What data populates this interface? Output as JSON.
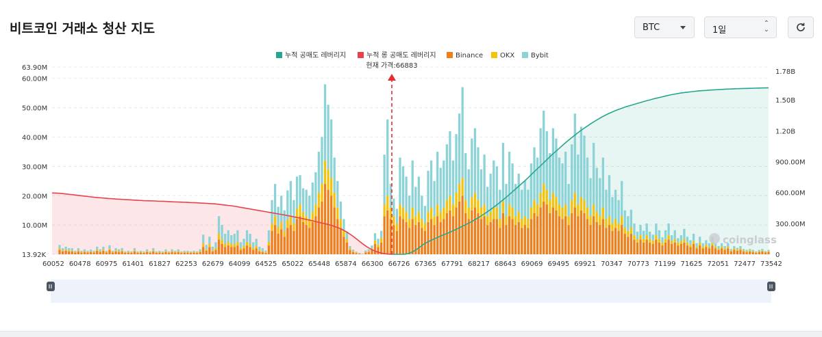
{
  "header": {
    "title": "비트코인 거래소 청산 지도",
    "symbol": "BTC",
    "period": "1일",
    "symbol_icon": "chevron-down-icon",
    "period_icon": "up-down-icon",
    "refresh_icon": "refresh-icon"
  },
  "colors": {
    "short_cum": "#26a68e",
    "long_cum": "#e8414b",
    "binance": "#ef7f1a",
    "okx": "#f5c20b",
    "bybit": "#8bd3d6",
    "price_marker": "#e62e2e"
  },
  "chart_data": {
    "type": "bar",
    "legend": [
      "누적 공매도 레버리지",
      "누적 롱 공매도 레버리지",
      "Binance",
      "OKX",
      "Bybit"
    ],
    "legend_position": "top-center",
    "current_price_label": "현재 가격:66883",
    "current_price": 66883,
    "x_tick_labels": [
      "60052",
      "60478",
      "60975",
      "61401",
      "61827",
      "62253",
      "62679",
      "64099",
      "64525",
      "65022",
      "65448",
      "65874",
      "66300",
      "66726",
      "67365",
      "67791",
      "68217",
      "68643",
      "69069",
      "69495",
      "69921",
      "70347",
      "70773",
      "71199",
      "71625",
      "72051",
      "72477",
      "73542"
    ],
    "y_left": {
      "ticks": [
        "13.92K",
        "10.00M",
        "20.00M",
        "30.00M",
        "40.00M",
        "50.00M",
        "60.00M",
        "63.90M"
      ],
      "tick_values": [
        13920,
        10000000,
        20000000,
        30000000,
        40000000,
        50000000,
        60000000,
        63900000
      ],
      "range": [
        13920,
        63900000
      ]
    },
    "y_right": {
      "ticks": [
        "0",
        "300.00M",
        "600.00M",
        "900.00M",
        "1.20B",
        "1.50B",
        "1.78B"
      ],
      "tick_values": [
        0,
        300000000,
        600000000,
        900000000,
        1200000000,
        1500000000,
        1780000000
      ],
      "range": [
        0,
        1780000000
      ]
    },
    "bars_million": {
      "binance": [
        1.5,
        1.0,
        1.2,
        1.0,
        1.0,
        0.6,
        1.0,
        0.6,
        0.8,
        0.6,
        0.8,
        0.6,
        1.2,
        0.8,
        1.2,
        0.6,
        1.4,
        0.6,
        1.0,
        0.8,
        1.0,
        0.5,
        0.6,
        0.5,
        1.0,
        0.5,
        0.6,
        0.5,
        0.8,
        0.5,
        1.0,
        0.5,
        0.6,
        0.5,
        0.8,
        0.5,
        0.8,
        0.6,
        0.8,
        0.5,
        0.6,
        0.6,
        0.5,
        0.6,
        0.5,
        0.8,
        2.5,
        1.2,
        2.5,
        1.0,
        1.5,
        5.0,
        3.5,
        2.5,
        3.0,
        2.5,
        2.5,
        3.0,
        1.5,
        2.0,
        3.0,
        2.5,
        1.5,
        2.0,
        1.0,
        0.8,
        0.5,
        3.0,
        8.0,
        10.0,
        7.0,
        8.5,
        6.0,
        9.0,
        10.0,
        8.0,
        12.0,
        13.0,
        11.0,
        10.0,
        9.0,
        11.0,
        13.0,
        16.0,
        18.0,
        24.0,
        22.0,
        20.0,
        16.0,
        12.0,
        9.0,
        6.0,
        4.0,
        1.5,
        0.8,
        0.4,
        0.2,
        0.1,
        0.6,
        0.8,
        1.5,
        3.5,
        2.5,
        4.0,
        13.0,
        15.0,
        12.0,
        10.0,
        8.0,
        13.0,
        12.0,
        11.0,
        9.0,
        12.0,
        10.0,
        11.0,
        9.0,
        8.0,
        11.0,
        12.0,
        10.0,
        13.0,
        11.0,
        12.0,
        14.0,
        15.0,
        13.0,
        16.0,
        18.0,
        20.0,
        14.0,
        12.0,
        15.0,
        16.0,
        14.0,
        12.0,
        13.0,
        10.0,
        11.0,
        12.0,
        12.0,
        9.0,
        14.0,
        10.0,
        13.0,
        12.0,
        10.0,
        11.0,
        9.0,
        10.0,
        9.0,
        12.0,
        14.0,
        13.0,
        16.0,
        18.0,
        17.0,
        14.0,
        16.0,
        15.0,
        13.0,
        12.0,
        13.0,
        10.0,
        14.0,
        16.0,
        13.0,
        15.0,
        14.0,
        12.0,
        10.0,
        13.0,
        11.0,
        10.0,
        12.0,
        9.0,
        10.0,
        8.0,
        9.0,
        8.0,
        10.0,
        7.0,
        6.0,
        7.0,
        5.0,
        4.0,
        5.0,
        4.0,
        5.0,
        4.0,
        3.5,
        5.0,
        4.0,
        3.0,
        4.0,
        5.0,
        3.5,
        4.0,
        3.0,
        3.5,
        4.0,
        3.0,
        2.5,
        3.5,
        2.0,
        3.0,
        2.0,
        2.5,
        2.0,
        3.0,
        2.0,
        1.5,
        2.0,
        1.5,
        2.0,
        1.0,
        1.5,
        1.2,
        1.5,
        1.0,
        0.8,
        1.0,
        0.8,
        0.5,
        0.8,
        1.0,
        0.6,
        0.8
      ],
      "okx": [
        0.5,
        0.3,
        0.4,
        0.3,
        0.3,
        0.2,
        0.3,
        0.2,
        0.3,
        0.2,
        0.2,
        0.2,
        0.4,
        0.3,
        0.4,
        0.2,
        0.5,
        0.2,
        0.3,
        0.3,
        0.3,
        0.2,
        0.2,
        0.2,
        0.3,
        0.2,
        0.2,
        0.2,
        0.3,
        0.2,
        0.3,
        0.2,
        0.2,
        0.2,
        0.3,
        0.2,
        0.3,
        0.2,
        0.3,
        0.2,
        0.2,
        0.2,
        0.2,
        0.2,
        0.2,
        0.3,
        1.2,
        0.5,
        1.0,
        0.4,
        0.6,
        2.0,
        1.5,
        1.0,
        1.2,
        1.0,
        1.0,
        1.2,
        0.6,
        0.8,
        1.2,
        1.0,
        0.6,
        0.8,
        0.4,
        0.3,
        0.2,
        1.2,
        2.5,
        3.0,
        2.2,
        2.5,
        2.0,
        2.8,
        3.0,
        2.5,
        3.5,
        4.0,
        3.5,
        3.0,
        3.0,
        3.5,
        4.0,
        5.0,
        6.0,
        8.0,
        7.0,
        6.0,
        5.0,
        4.0,
        3.0,
        2.0,
        1.2,
        0.5,
        0.3,
        0.2,
        0.1,
        0.05,
        0.2,
        0.3,
        0.5,
        1.2,
        0.8,
        1.5,
        4.0,
        5.0,
        4.0,
        3.0,
        2.5,
        4.0,
        4.0,
        3.5,
        3.0,
        4.0,
        3.0,
        3.5,
        3.0,
        2.5,
        3.5,
        4.0,
        3.0,
        4.0,
        3.5,
        4.0,
        4.5,
        5.0,
        4.0,
        5.0,
        6.0,
        6.0,
        4.5,
        4.0,
        4.5,
        5.0,
        4.5,
        4.0,
        4.0,
        3.0,
        3.5,
        4.0,
        4.0,
        3.0,
        4.0,
        3.0,
        4.0,
        4.0,
        3.0,
        3.5,
        3.0,
        3.0,
        3.0,
        4.0,
        4.5,
        4.0,
        5.0,
        6.0,
        5.0,
        4.5,
        5.0,
        4.5,
        4.0,
        4.0,
        4.0,
        3.0,
        4.5,
        5.0,
        4.0,
        4.5,
        4.5,
        4.0,
        3.0,
        4.0,
        3.5,
        3.0,
        4.0,
        3.0,
        3.0,
        2.5,
        3.0,
        2.5,
        3.0,
        2.0,
        2.0,
        2.2,
        1.5,
        1.2,
        1.5,
        1.2,
        1.5,
        1.2,
        1.2,
        1.5,
        1.2,
        1.0,
        1.2,
        1.5,
        1.0,
        1.2,
        1.0,
        1.0,
        1.2,
        1.0,
        0.8,
        1.0,
        0.6,
        1.0,
        0.6,
        0.8,
        0.6,
        1.0,
        0.6,
        0.5,
        0.6,
        0.5,
        0.6,
        0.3,
        0.5,
        0.4,
        0.5,
        0.3,
        0.3,
        0.3,
        0.3,
        0.2,
        0.3,
        0.3,
        0.2,
        0.3
      ],
      "bybit": [
        1.2,
        0.8,
        1.0,
        0.8,
        0.8,
        0.4,
        0.8,
        0.4,
        0.6,
        0.4,
        0.6,
        0.4,
        1.0,
        0.6,
        1.0,
        0.4,
        1.2,
        0.4,
        0.8,
        0.6,
        0.8,
        0.3,
        0.4,
        0.3,
        0.8,
        0.3,
        0.4,
        0.3,
        0.6,
        0.3,
        0.8,
        0.3,
        0.4,
        0.3,
        0.6,
        0.3,
        0.6,
        0.4,
        0.6,
        0.3,
        0.4,
        0.4,
        0.3,
        0.4,
        0.3,
        0.6,
        3.0,
        1.5,
        2.5,
        1.2,
        2.0,
        6.0,
        5.0,
        3.5,
        4.0,
        3.0,
        3.5,
        4.0,
        2.0,
        2.5,
        4.0,
        3.5,
        2.0,
        2.5,
        1.2,
        1.0,
        0.6,
        4.0,
        8.0,
        11.0,
        7.0,
        9.0,
        7.0,
        10.0,
        12.0,
        8.0,
        11.0,
        10.0,
        8.0,
        9.0,
        8.0,
        10.0,
        11.0,
        14.0,
        16.0,
        26.0,
        22.0,
        20.0,
        12.0,
        9.0,
        6.0,
        4.0,
        2.5,
        0.8,
        0.5,
        0.3,
        0.2,
        0.05,
        0.5,
        0.6,
        1.0,
        2.5,
        2.0,
        2.5,
        17.0,
        26.0,
        8.0,
        6.0,
        5.0,
        16.0,
        14.0,
        12.0,
        8.0,
        16.0,
        10.0,
        12.0,
        8.0,
        6.0,
        14.0,
        16.0,
        12.0,
        18.0,
        15.0,
        16.0,
        19.0,
        22.0,
        15.0,
        20.0,
        24.0,
        31.0,
        16.0,
        13.0,
        20.0,
        22.0,
        18.0,
        13.0,
        17.0,
        10.0,
        13.0,
        16.0,
        14.0,
        10.0,
        20.0,
        11.0,
        18.0,
        15.0,
        11.0,
        13.0,
        10.0,
        12.0,
        10.0,
        15.0,
        18.0,
        16.0,
        22.0,
        25.0,
        20.0,
        16.0,
        22.0,
        20.0,
        16.0,
        15.0,
        18.0,
        11.0,
        19.0,
        27.0,
        17.0,
        24.0,
        22.0,
        17.0,
        13.0,
        21.0,
        15.0,
        13.0,
        17.0,
        10.0,
        14.0,
        9.0,
        10.0,
        8.0,
        12.0,
        6.0,
        5.0,
        6.0,
        4.0,
        2.5,
        3.5,
        2.8,
        4.0,
        2.5,
        2.0,
        4.0,
        3.0,
        1.8,
        3.0,
        4.0,
        2.0,
        3.0,
        1.5,
        2.0,
        3.5,
        2.0,
        1.5,
        2.5,
        1.2,
        2.0,
        1.2,
        1.5,
        1.2,
        2.0,
        1.2,
        0.8,
        1.2,
        0.8,
        1.2,
        0.5,
        0.8,
        0.6,
        0.8,
        0.5,
        0.4,
        0.5,
        0.4,
        0.3,
        0.4,
        0.5,
        0.3,
        0.4
      ]
    },
    "cumulative_long_million": [
      596,
      595,
      593,
      590,
      586,
      582,
      578,
      574,
      570,
      566,
      562,
      558,
      554,
      551,
      548,
      545,
      542,
      540,
      537,
      535,
      533,
      531,
      529,
      527,
      525,
      523,
      521,
      520,
      519,
      518,
      516,
      515,
      514,
      512,
      510,
      509,
      508,
      506,
      505,
      503,
      502,
      500,
      498,
      496,
      494,
      492,
      490,
      486,
      482,
      478,
      474,
      470,
      465,
      458,
      452,
      446,
      440,
      434,
      428,
      422,
      416,
      410,
      404,
      398,
      392,
      386,
      380,
      373,
      366,
      359,
      352,
      345,
      338,
      330,
      322,
      314,
      306,
      298,
      290,
      280,
      268,
      256,
      240,
      222,
      200,
      176,
      150,
      122,
      96,
      72,
      52,
      35,
      22,
      12,
      6,
      2,
      0
    ],
    "cumulative_short_million": [
      0,
      0,
      0,
      0,
      2,
      10,
      25,
      45,
      70,
      95,
      115,
      132,
      148,
      162,
      178,
      192,
      205,
      220,
      236,
      252,
      268,
      285,
      302,
      320,
      340,
      360,
      382,
      404,
      428,
      452,
      478,
      505,
      532,
      560,
      590,
      620,
      650,
      680,
      710,
      742,
      775,
      808,
      840,
      872,
      905,
      938,
      970,
      1000,
      1030,
      1060,
      1090,
      1118,
      1145,
      1172,
      1198,
      1222,
      1245,
      1268,
      1290,
      1310,
      1330,
      1348,
      1365,
      1380,
      1395,
      1408,
      1420,
      1432,
      1442,
      1452,
      1462,
      1472,
      1482,
      1492,
      1500,
      1510,
      1518,
      1526,
      1534,
      1542,
      1550,
      1556,
      1562,
      1568,
      1572,
      1576,
      1580,
      1584,
      1588,
      1590,
      1592,
      1595,
      1597,
      1599,
      1601,
      1603,
      1605,
      1606,
      1608,
      1609,
      1610,
      1611,
      1612,
      1613,
      1614,
      1615,
      1616,
      1617,
      1618
    ]
  }
}
